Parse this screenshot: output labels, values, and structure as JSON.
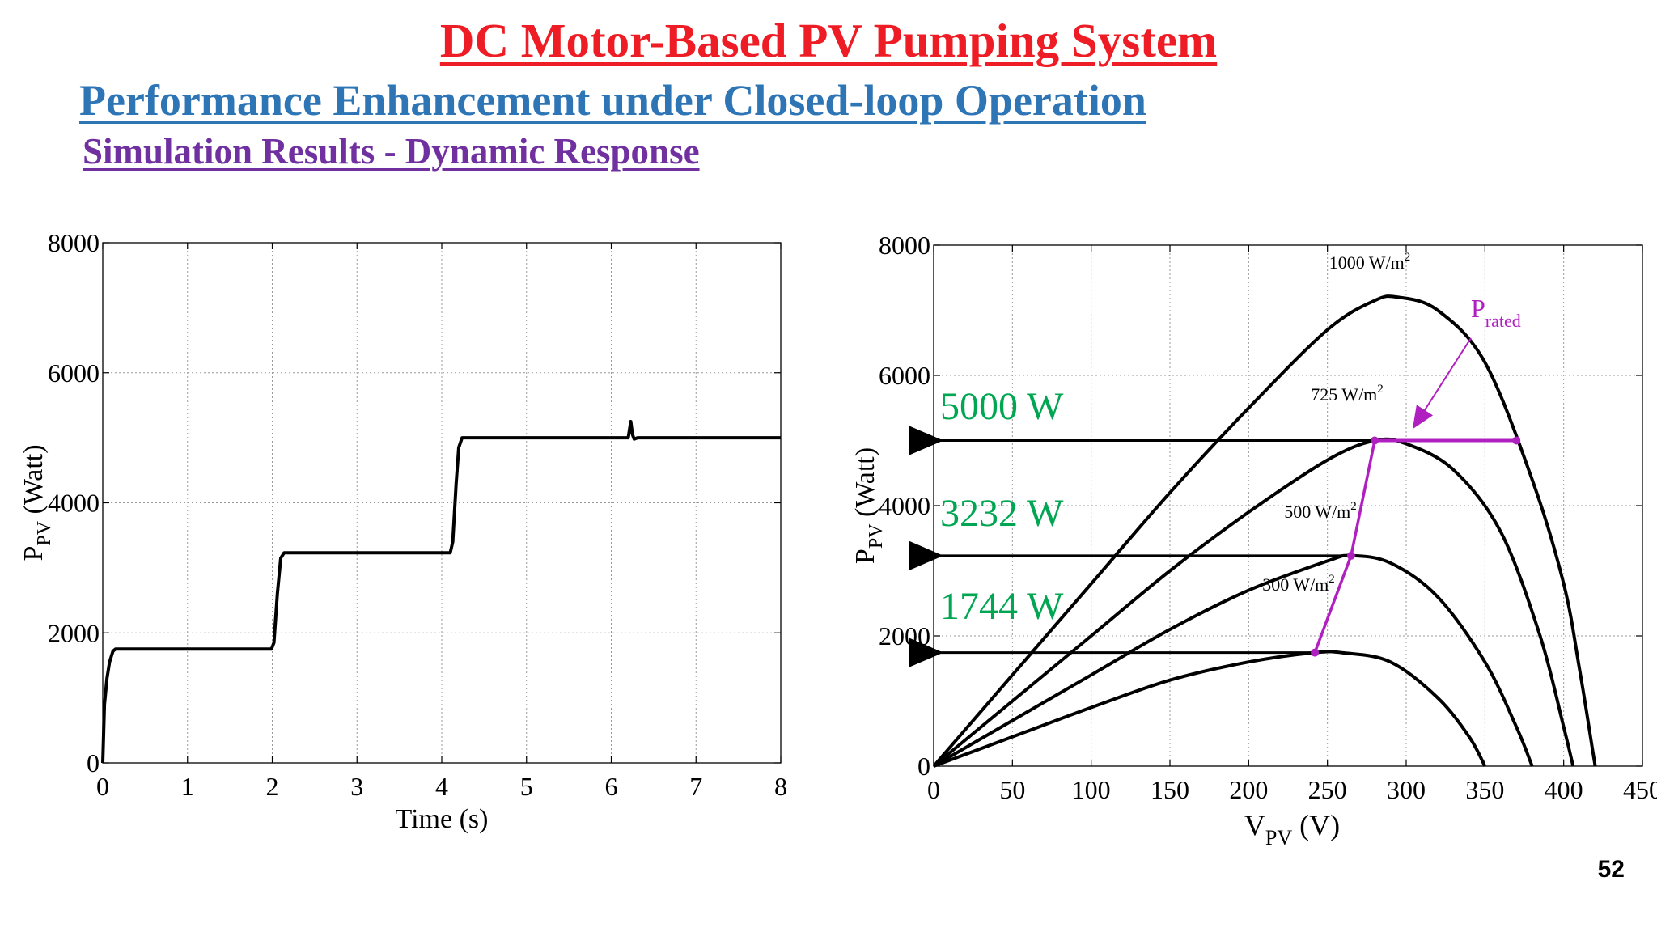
{
  "slide": {
    "title": "DC Motor-Based PV Pumping System",
    "subtitle": "Performance Enhancement under Closed-loop Operation",
    "section": "Simulation Results - Dynamic Response",
    "page_number": "52"
  },
  "colors": {
    "title": "#ee1c24",
    "subtitle": "#2e75b6",
    "section": "#7030a0",
    "annotation_green": "#00a651",
    "rated_magenta": "#b020c0",
    "curve": "#000000"
  },
  "chart_data": [
    {
      "type": "line",
      "xlabel": "Time (s)",
      "ylabel_main": "P",
      "ylabel_sub": "PV",
      "ylabel_unit": "(Watt)",
      "xlim": [
        0,
        8
      ],
      "ylim": [
        0,
        8000
      ],
      "xticks": [
        0,
        1,
        2,
        3,
        4,
        5,
        6,
        7,
        8
      ],
      "yticks": [
        0,
        2000,
        4000,
        6000,
        8000
      ],
      "grid": true,
      "series": [
        {
          "x": [
            0,
            0.02,
            0.05,
            0.08,
            0.12,
            0.15,
            1.99,
            2.02,
            2.06,
            2.1,
            2.14,
            4.1,
            4.13,
            4.17,
            4.2,
            4.24,
            6.2,
            6.23,
            6.25,
            6.27,
            6.31,
            8.0
          ],
          "y": [
            0,
            900,
            1300,
            1550,
            1720,
            1750,
            1750,
            1850,
            2600,
            3150,
            3232,
            3232,
            3400,
            4300,
            4850,
            5000,
            5000,
            5250,
            5050,
            4980,
            5000,
            5000
          ]
        }
      ]
    },
    {
      "type": "line",
      "xlabel_main": "V",
      "xlabel_sub": "PV",
      "xlabel_unit": "(V)",
      "ylabel_main": "P",
      "ylabel_sub": "PV",
      "ylabel_unit": "(Watt)",
      "xlim": [
        0,
        450
      ],
      "ylim": [
        0,
        8000
      ],
      "xticks": [
        0,
        50,
        100,
        150,
        200,
        250,
        300,
        350,
        400,
        450
      ],
      "yticks": [
        0,
        2000,
        4000,
        6000,
        8000
      ],
      "grid": true,
      "series": [
        {
          "name": "1000 W/m",
          "x": [
            0,
            50,
            100,
            150,
            200,
            250,
            280,
            295,
            320,
            350,
            380,
            400,
            410,
            418,
            420
          ],
          "y": [
            0,
            1400,
            2800,
            4200,
            5500,
            6700,
            7150,
            7200,
            7000,
            6200,
            4400,
            2800,
            1500,
            300,
            0
          ]
        },
        {
          "name": "725 W/m",
          "x": [
            0,
            50,
            100,
            150,
            200,
            250,
            280,
            300,
            330,
            360,
            385,
            400,
            406
          ],
          "y": [
            0,
            1000,
            2000,
            3000,
            3900,
            4700,
            5000,
            4950,
            4550,
            3600,
            2000,
            600,
            0
          ]
        },
        {
          "name": "500 W/m",
          "x": [
            0,
            50,
            100,
            150,
            200,
            250,
            265,
            290,
            320,
            350,
            370,
            380
          ],
          "y": [
            0,
            700,
            1400,
            2100,
            2700,
            3150,
            3232,
            3120,
            2600,
            1600,
            600,
            0
          ]
        },
        {
          "name": "300 W/m",
          "x": [
            0,
            50,
            100,
            150,
            200,
            242,
            260,
            290,
            320,
            340,
            350
          ],
          "y": [
            0,
            450,
            900,
            1320,
            1600,
            1744,
            1740,
            1600,
            1050,
            450,
            0
          ]
        }
      ],
      "mpp_points": [
        {
          "x": 242,
          "y": 1744
        },
        {
          "x": 265,
          "y": 3232
        },
        {
          "x": 280,
          "y": 5000
        }
      ],
      "rated_line": {
        "x": [
          280,
          370
        ],
        "y": 5000
      },
      "power_labels": [
        {
          "text": "5000 W",
          "y": 5000
        },
        {
          "text": "3232 W",
          "y": 3232
        },
        {
          "text": "1744 W",
          "y": 1744
        }
      ],
      "curve_labels": [
        {
          "base": "1000 W/m",
          "sup": "2"
        },
        {
          "base": "725 W/m",
          "sup": "2"
        },
        {
          "base": "500 W/m",
          "sup": "2"
        },
        {
          "base": "300 W/m",
          "sup": "2"
        }
      ],
      "rated_label": {
        "main": "P",
        "sub": "rated"
      }
    }
  ]
}
